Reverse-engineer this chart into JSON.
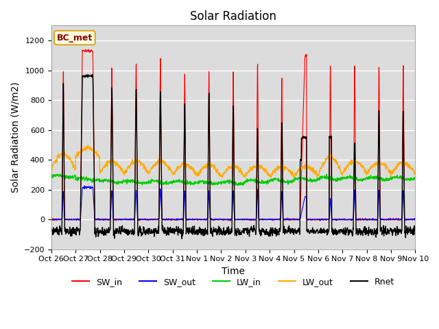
{
  "title": "Solar Radiation",
  "ylabel": "Solar Radiation (W/m2)",
  "xlabel": "Time",
  "ylim": [
    -200,
    1300
  ],
  "yticks": [
    -200,
    0,
    200,
    400,
    600,
    800,
    1000,
    1200
  ],
  "date_labels": [
    "Oct 26",
    "Oct 27",
    "Oct 28",
    "Oct 29",
    "Oct 30",
    "Oct 31",
    "Nov 1",
    "Nov 2",
    "Nov 3",
    "Nov 4",
    "Nov 5",
    "Nov 6",
    "Nov 7",
    "Nov 8",
    "Nov 9",
    "Nov 10"
  ],
  "annotation": "BC_met",
  "colors": {
    "SW_in": "#ff0000",
    "SW_out": "#0000ff",
    "LW_in": "#00cc00",
    "LW_out": "#ffaa00",
    "Rnet": "#000000"
  },
  "title_fontsize": 12,
  "axis_fontsize": 10,
  "tick_fontsize": 8
}
